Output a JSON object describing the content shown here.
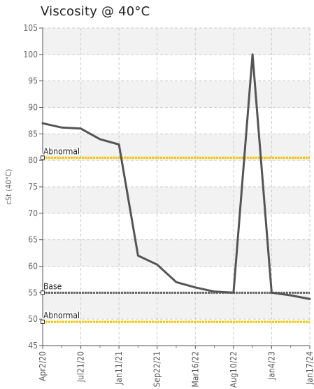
{
  "chart_data": {
    "type": "line",
    "title": "Viscosity @ 40°C",
    "xlabel": "",
    "ylabel": "cSt (40°C)",
    "ylim": [
      45,
      105
    ],
    "yticks": [
      45,
      50,
      55,
      60,
      65,
      70,
      75,
      80,
      85,
      90,
      95,
      100,
      105
    ],
    "xtick_labels": [
      "Apr2/20",
      "Jul21/20",
      "Jan11/21",
      "Sep22/21",
      "Mar16/22",
      "Aug10/22",
      "Jan4/23",
      "Jan17/24"
    ],
    "grid": true,
    "series": [
      {
        "x": [
          0,
          0.5,
          1,
          1.5,
          2,
          2.5,
          3,
          3.5,
          4,
          4.5,
          5,
          5.5,
          6,
          6.5,
          7
        ],
        "values": [
          87,
          86.2,
          86,
          84,
          83,
          62,
          60.3,
          57,
          56,
          55.2,
          55,
          100,
          55,
          54.5,
          53.8
        ]
      }
    ],
    "reference_lines": [
      {
        "label": "Abnormal",
        "value": 80.5,
        "color": "#f5c400"
      },
      {
        "label": "Base",
        "value": 55,
        "color": "#666666"
      },
      {
        "label": "Abnormal",
        "value": 49.5,
        "color": "#f5c400"
      }
    ],
    "colors": {
      "line": "#555555",
      "band": "#f2f2f2",
      "grid": "#cccccc"
    }
  }
}
